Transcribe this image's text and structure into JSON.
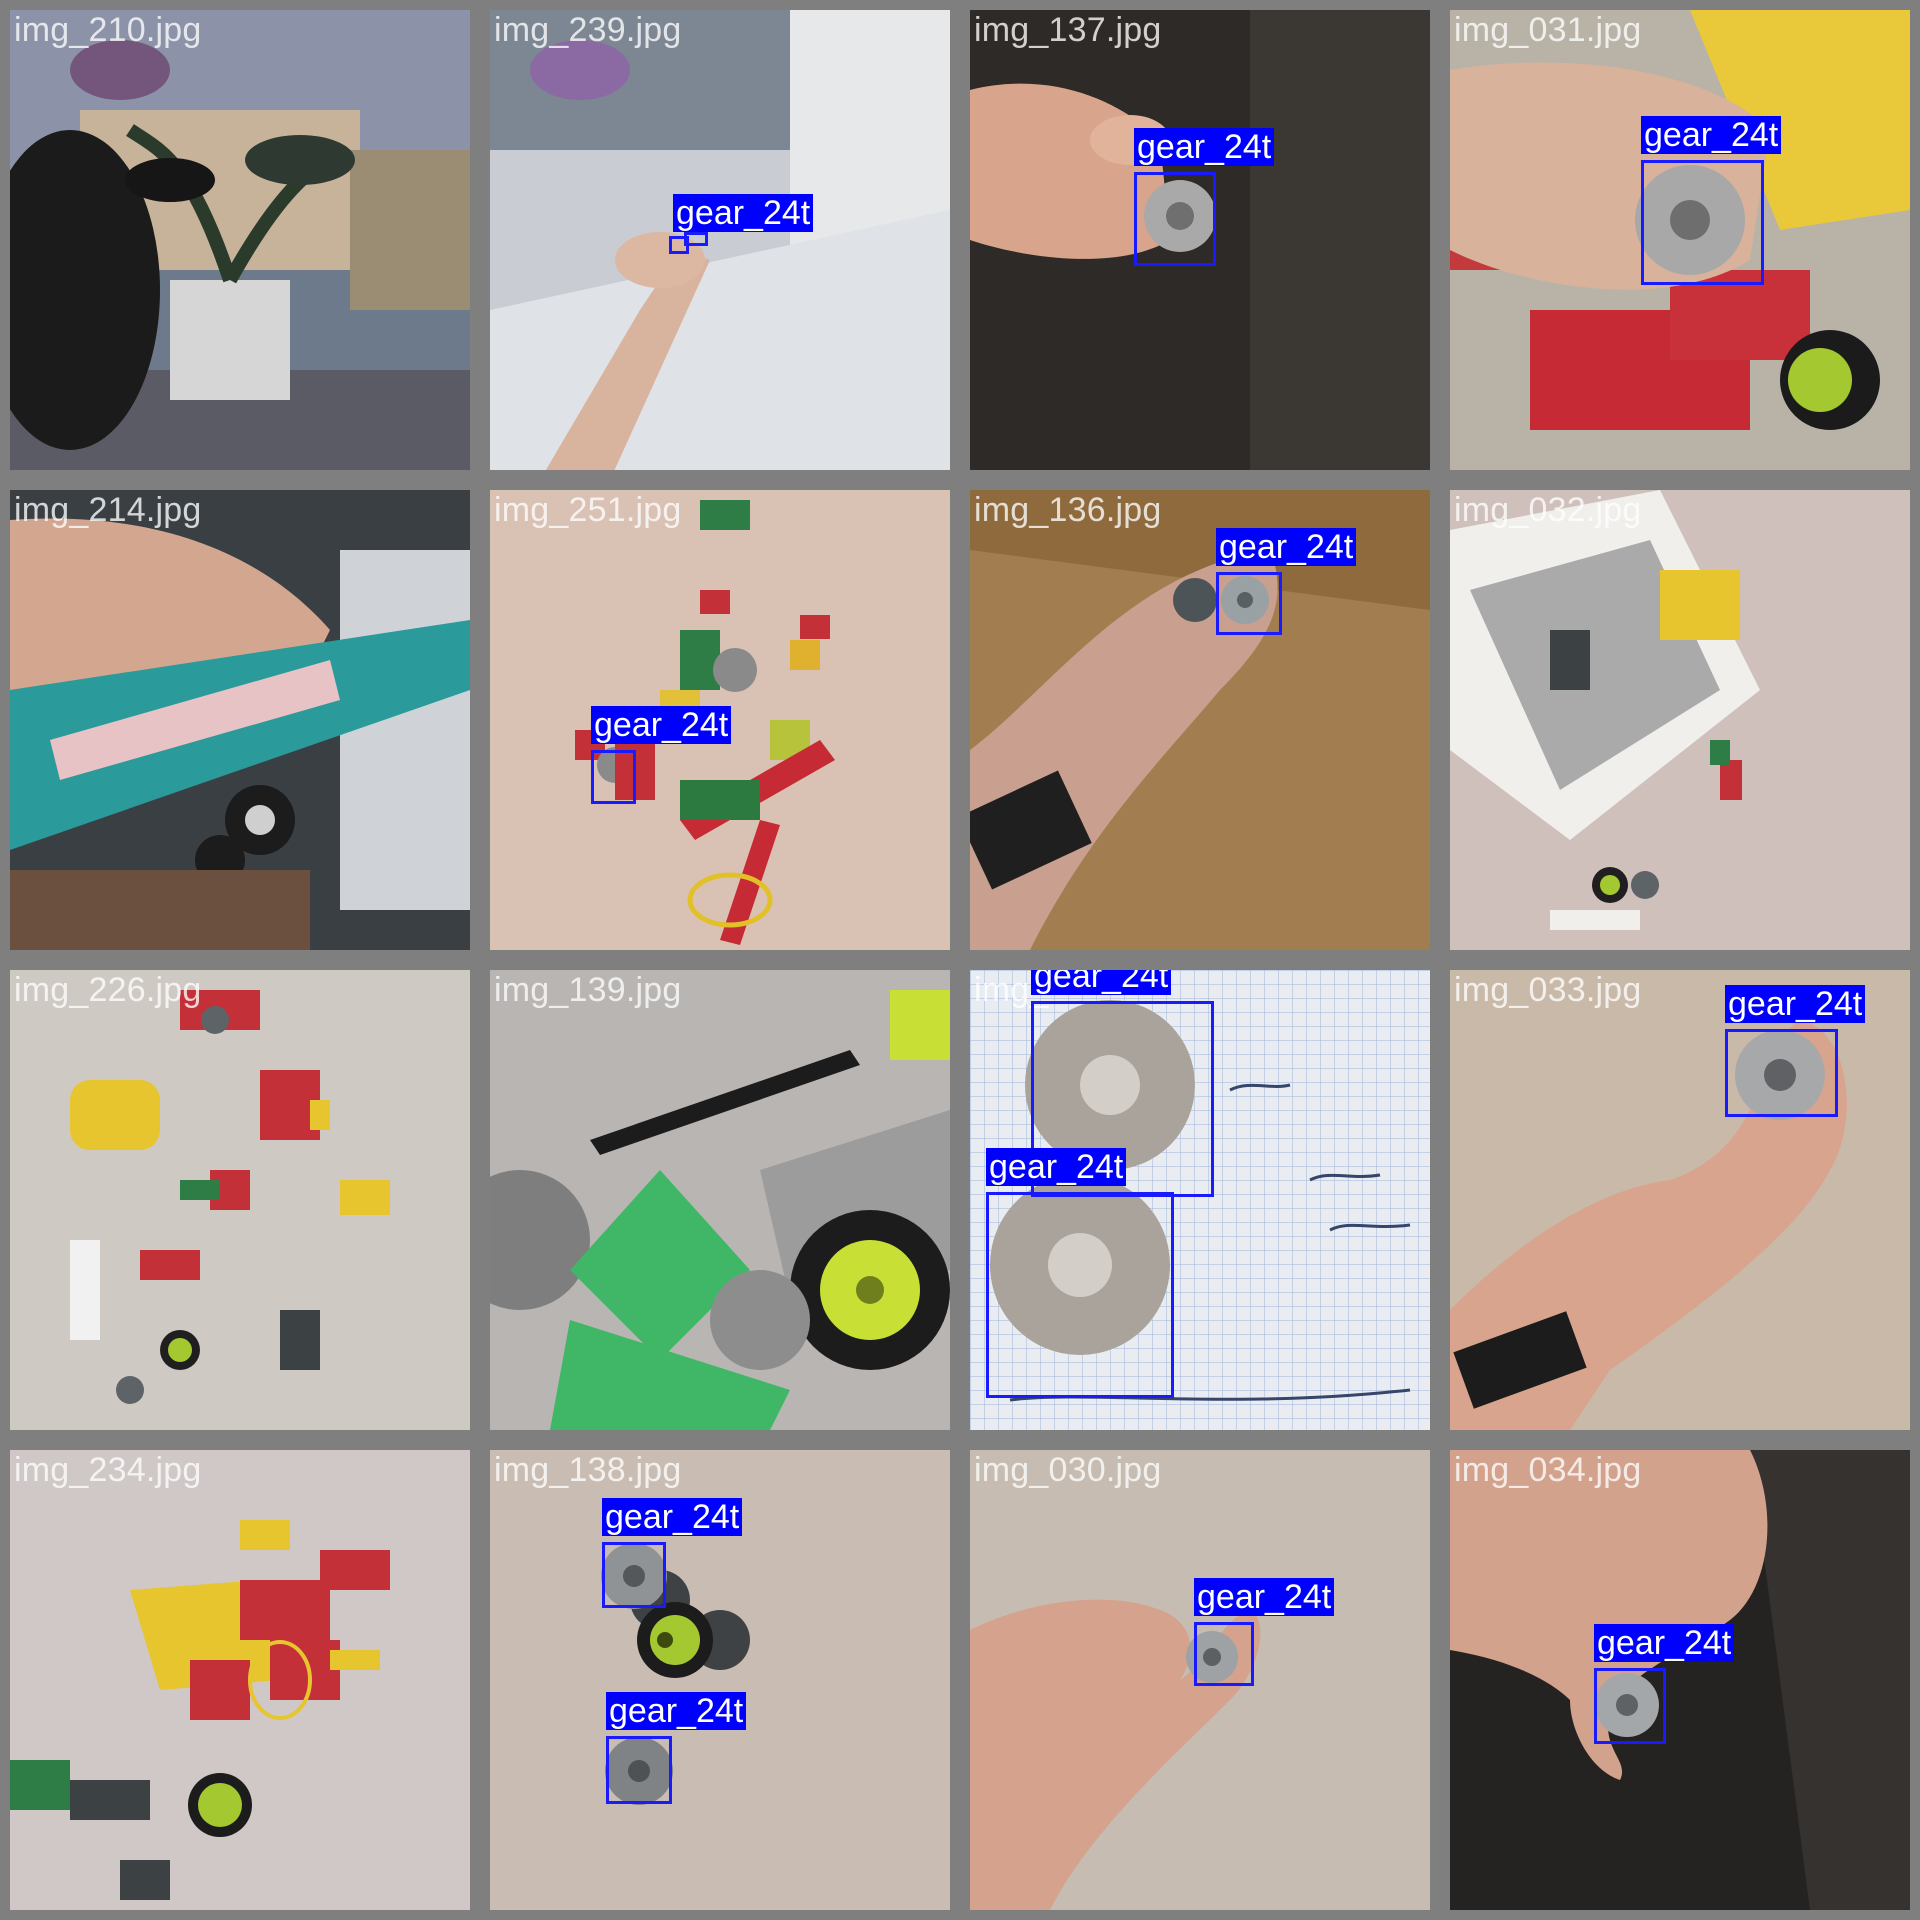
{
  "colors": {
    "box": "#1a1aff",
    "label_bg": "#0000ff",
    "label_text": "#ffffff",
    "grid_bg": "#7f7f7f"
  },
  "tiles": [
    {
      "file": "img_210.jpg",
      "scene": "window-orchid",
      "detections": []
    },
    {
      "file": "img_239.jpg",
      "scene": "curtain-hand",
      "detections": [
        {
          "label": "gear_24t"
        }
      ]
    },
    {
      "file": "img_137.jpg",
      "scene": "hand-dark",
      "detections": [
        {
          "label": "gear_24t"
        }
      ]
    },
    {
      "file": "img_031.jpg",
      "scene": "box-bricks-hand",
      "detections": [
        {
          "label": "gear_24t"
        }
      ]
    },
    {
      "file": "img_214.jpg",
      "scene": "teal-model",
      "detections": []
    },
    {
      "file": "img_251.jpg",
      "scene": "pink-bricks",
      "detections": [
        {
          "label": "gear_24t"
        }
      ]
    },
    {
      "file": "img_136.jpg",
      "scene": "parquet-hand",
      "detections": [
        {
          "label": "gear_24t"
        }
      ]
    },
    {
      "file": "img_032.jpg",
      "scene": "white-box",
      "detections": []
    },
    {
      "file": "img_226.jpg",
      "scene": "blanket-bricks",
      "detections": []
    },
    {
      "file": "img_139.jpg",
      "scene": "pile-closeup",
      "detections": []
    },
    {
      "file": "img_",
      "scene": "grid-paper",
      "detections": [
        {
          "label": "gear_24t"
        },
        {
          "label": "gear_24t"
        }
      ]
    },
    {
      "file": "img_033.jpg",
      "scene": "beige-hand",
      "detections": [
        {
          "label": "gear_24t"
        }
      ]
    },
    {
      "file": "img_234.jpg",
      "scene": "blanket-bricks-2",
      "detections": []
    },
    {
      "file": "img_138.jpg",
      "scene": "blanket-gears",
      "detections": [
        {
          "label": "gear_24t"
        },
        {
          "label": "gear_24t"
        }
      ]
    },
    {
      "file": "img_030.jpg",
      "scene": "beige-hand-2",
      "detections": [
        {
          "label": "gear_24t"
        }
      ]
    },
    {
      "file": "img_034.jpg",
      "scene": "dark-leather-hand",
      "detections": [
        {
          "label": "gear_24t"
        }
      ]
    }
  ]
}
